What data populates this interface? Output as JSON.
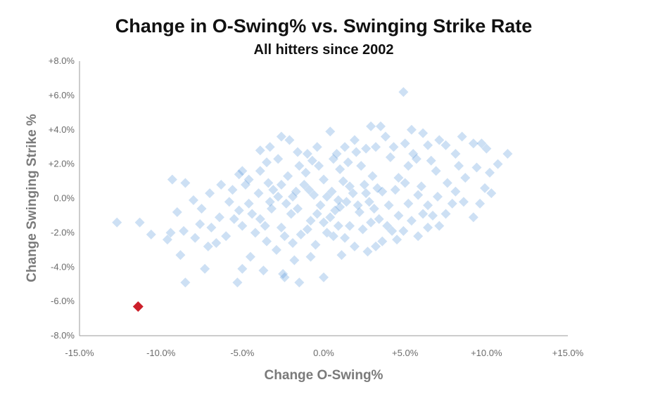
{
  "chart_data": {
    "type": "scatter",
    "title": "Change in O-Swing% vs. Swinging Strike Rate",
    "subtitle": "All hitters since 2002",
    "xlabel": "Change O-Swing%",
    "ylabel": "Change Swinging Strike %",
    "xlim": [
      -15,
      15
    ],
    "ylim": [
      -8,
      8
    ],
    "x_ticks": [
      "-15.0%",
      "-10.0%",
      "-5.0%",
      "0.0%",
      "+5.0%",
      "+10.0%",
      "+15.0%"
    ],
    "y_ticks": [
      "+8.0%",
      "+6.0%",
      "+4.0%",
      "+2.0%",
      "0.0%",
      "-2.0%",
      "-4.0%",
      "-6.0%",
      "-8.0%"
    ],
    "grid": false,
    "marker": "diamond",
    "colors": {
      "points": "#4a90d9",
      "highlight": "#cc1f2a",
      "axis": "#999999"
    },
    "points": [
      [
        -12.7,
        -1.4
      ],
      [
        -11.3,
        -1.4
      ],
      [
        -10.6,
        -2.1
      ],
      [
        -9.3,
        1.1
      ],
      [
        -8.5,
        0.9
      ],
      [
        -9.0,
        -0.8
      ],
      [
        -9.6,
        -2.4
      ],
      [
        -8.8,
        -3.3
      ],
      [
        -8.5,
        -4.9
      ],
      [
        -7.3,
        -4.1
      ],
      [
        -5.3,
        -4.9
      ],
      [
        -5.0,
        -4.1
      ],
      [
        -4.5,
        -3.4
      ],
      [
        -3.7,
        -4.2
      ],
      [
        -2.4,
        -4.6
      ],
      [
        -2.5,
        -4.4
      ],
      [
        -1.5,
        -4.9
      ],
      [
        0.0,
        -4.6
      ],
      [
        -1.8,
        -3.6
      ],
      [
        -0.8,
        -3.4
      ],
      [
        -6.9,
        -1.7
      ],
      [
        -6.6,
        -2.6
      ],
      [
        -7.6,
        -1.5
      ],
      [
        -7.9,
        -2.3
      ],
      [
        -7.1,
        -2.8
      ],
      [
        -6.3,
        0.8
      ],
      [
        -5.6,
        0.5
      ],
      [
        -5.2,
        1.4
      ],
      [
        -5.0,
        1.6
      ],
      [
        -4.6,
        1.1
      ],
      [
        -3.9,
        2.8
      ],
      [
        -3.5,
        2.1
      ],
      [
        -3.3,
        3.0
      ],
      [
        -2.6,
        3.6
      ],
      [
        -2.1,
        3.4
      ],
      [
        -1.6,
        2.7
      ],
      [
        -1.0,
        2.6
      ],
      [
        -0.4,
        3.0
      ],
      [
        0.4,
        3.9
      ],
      [
        0.8,
        2.6
      ],
      [
        1.3,
        3.0
      ],
      [
        1.9,
        3.4
      ],
      [
        2.6,
        2.9
      ],
      [
        3.2,
        3.0
      ],
      [
        3.5,
        4.2
      ],
      [
        3.8,
        3.6
      ],
      [
        2.9,
        4.2
      ],
      [
        4.9,
        6.2
      ],
      [
        5.4,
        4.0
      ],
      [
        6.1,
        3.8
      ],
      [
        5.0,
        3.2
      ],
      [
        5.7,
        2.3
      ],
      [
        6.4,
        3.1
      ],
      [
        7.1,
        3.4
      ],
      [
        7.5,
        3.1
      ],
      [
        8.1,
        2.6
      ],
      [
        8.5,
        3.6
      ],
      [
        9.2,
        3.2
      ],
      [
        9.7,
        3.2
      ],
      [
        10.0,
        2.9
      ],
      [
        10.7,
        2.0
      ],
      [
        11.3,
        2.6
      ],
      [
        10.2,
        1.5
      ],
      [
        9.9,
        0.6
      ],
      [
        10.3,
        0.3
      ],
      [
        9.6,
        -0.3
      ],
      [
        9.2,
        -1.1
      ],
      [
        8.6,
        -0.2
      ],
      [
        8.1,
        0.4
      ],
      [
        7.5,
        -0.9
      ],
      [
        7.1,
        -1.6
      ],
      [
        6.4,
        -1.7
      ],
      [
        5.8,
        -2.2
      ],
      [
        4.9,
        -1.9
      ],
      [
        4.2,
        -1.9
      ],
      [
        3.2,
        -2.8
      ],
      [
        2.7,
        -3.1
      ],
      [
        1.9,
        -2.8
      ],
      [
        1.1,
        -3.3
      ],
      [
        0.6,
        -2.2
      ],
      [
        7.6,
        0.9
      ],
      [
        6.9,
        1.6
      ],
      [
        6.0,
        0.7
      ],
      [
        5.2,
        1.9
      ],
      [
        4.6,
        1.2
      ],
      [
        4.1,
        2.4
      ],
      [
        3.6,
        0.4
      ],
      [
        3.0,
        1.3
      ],
      [
        2.3,
        1.9
      ],
      [
        1.6,
        0.7
      ],
      [
        1.0,
        1.7
      ],
      [
        0.5,
        0.4
      ],
      [
        0.0,
        1.1
      ],
      [
        -0.6,
        0.2
      ],
      [
        -1.1,
        1.5
      ],
      [
        -1.7,
        0.4
      ],
      [
        -2.2,
        1.3
      ],
      [
        -2.8,
        0.1
      ],
      [
        -3.4,
        0.9
      ],
      [
        -4.0,
        0.3
      ],
      [
        -4.6,
        -0.3
      ],
      [
        -5.2,
        -0.7
      ],
      [
        -5.8,
        -0.2
      ],
      [
        -6.4,
        -1.1
      ],
      [
        -3.9,
        -1.2
      ],
      [
        -3.2,
        -0.6
      ],
      [
        -2.6,
        -1.7
      ],
      [
        -2.0,
        -0.9
      ],
      [
        -1.4,
        -2.1
      ],
      [
        -0.8,
        -1.3
      ],
      [
        -0.2,
        -0.4
      ],
      [
        0.4,
        -1.1
      ],
      [
        1.0,
        -0.5
      ],
      [
        1.6,
        -1.6
      ],
      [
        2.2,
        -0.8
      ],
      [
        2.8,
        -0.2
      ],
      [
        3.4,
        -1.2
      ],
      [
        4.0,
        -0.4
      ],
      [
        4.6,
        -1.0
      ],
      [
        5.2,
        -0.3
      ],
      [
        5.8,
        0.2
      ],
      [
        6.4,
        -0.4
      ],
      [
        7.0,
        0.1
      ],
      [
        -3.5,
        -2.5
      ],
      [
        -4.2,
        -2.0
      ],
      [
        -5.0,
        -1.6
      ],
      [
        -2.9,
        -3.0
      ],
      [
        -1.9,
        -2.6
      ],
      [
        -0.5,
        -2.7
      ],
      [
        0.2,
        -2.0
      ],
      [
        1.3,
        -2.3
      ],
      [
        2.4,
        -1.8
      ],
      [
        3.6,
        -2.5
      ],
      [
        4.5,
        -2.4
      ],
      [
        -1.2,
        0.8
      ],
      [
        -0.3,
        1.9
      ],
      [
        0.9,
        -0.1
      ],
      [
        1.8,
        0.3
      ],
      [
        2.5,
        0.8
      ],
      [
        3.1,
        -0.6
      ],
      [
        -2.3,
        -0.3
      ],
      [
        -1.6,
        -0.6
      ],
      [
        -0.9,
        0.5
      ],
      [
        0.2,
        0.1
      ],
      [
        1.2,
        1.0
      ],
      [
        2.1,
        -0.4
      ],
      [
        -3.1,
        0.5
      ],
      [
        -4.8,
        0.8
      ],
      [
        -5.5,
        -1.2
      ],
      [
        -6.0,
        -2.2
      ],
      [
        -7.0,
        0.3
      ],
      [
        -7.5,
        -0.6
      ],
      [
        -8.0,
        -0.1
      ],
      [
        -8.6,
        -1.9
      ],
      [
        -9.4,
        -2.0
      ],
      [
        6.7,
        -1.0
      ],
      [
        7.9,
        -0.3
      ],
      [
        8.7,
        1.2
      ],
      [
        9.4,
        1.8
      ],
      [
        8.3,
        1.9
      ],
      [
        -1.5,
        1.9
      ],
      [
        -0.7,
        2.2
      ],
      [
        0.6,
        2.3
      ],
      [
        1.5,
        2.1
      ],
      [
        2.0,
        2.7
      ],
      [
        4.3,
        3.0
      ],
      [
        5.5,
        2.6
      ],
      [
        6.6,
        2.2
      ],
      [
        -2.8,
        2.3
      ],
      [
        -3.9,
        1.6
      ],
      [
        -4.4,
        -0.9
      ],
      [
        -3.6,
        -1.6
      ],
      [
        -2.4,
        -2.2
      ],
      [
        -1.0,
        -1.8
      ],
      [
        0.0,
        -1.4
      ],
      [
        0.9,
        -1.6
      ],
      [
        2.9,
        -1.4
      ],
      [
        3.9,
        -1.6
      ],
      [
        5.4,
        -1.3
      ],
      [
        6.1,
        -0.9
      ],
      [
        -0.4,
        -0.9
      ],
      [
        0.7,
        -0.7
      ],
      [
        1.4,
        -0.2
      ],
      [
        2.6,
        0.3
      ],
      [
        3.3,
        0.6
      ],
      [
        4.4,
        0.5
      ],
      [
        5.0,
        0.9
      ],
      [
        -1.9,
        0.1
      ],
      [
        -2.6,
        0.8
      ],
      [
        -3.3,
        -0.2
      ]
    ],
    "highlight": [
      -11.4,
      -6.3
    ]
  }
}
